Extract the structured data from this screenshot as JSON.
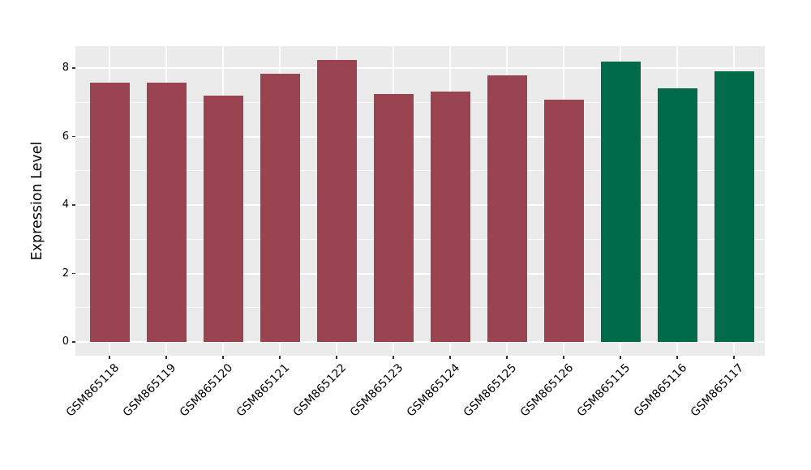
{
  "chart_data": {
    "type": "bar",
    "title": "",
    "xlabel": "",
    "ylabel": "Expression Level",
    "categories": [
      "GSM865118",
      "GSM865119",
      "GSM865120",
      "GSM865121",
      "GSM865122",
      "GSM865123",
      "GSM865124",
      "GSM865125",
      "GSM865126",
      "GSM865115",
      "GSM865116",
      "GSM865117"
    ],
    "values": [
      7.57,
      7.57,
      7.2,
      7.84,
      8.24,
      7.24,
      7.31,
      7.79,
      7.08,
      8.19,
      7.41,
      7.91
    ],
    "bar_colors": [
      "#9B4451",
      "#9B4451",
      "#9B4451",
      "#9B4451",
      "#9B4451",
      "#9B4451",
      "#9B4451",
      "#9B4451",
      "#9B4451",
      "#006B48",
      "#006B48",
      "#006B48"
    ],
    "yticks": [
      0,
      2,
      4,
      6,
      8
    ],
    "yticks_minor": [
      1,
      3,
      5,
      7
    ],
    "ylim": [
      -0.43,
      8.64
    ],
    "x_tick_rotation": 45,
    "legend": "none",
    "grid": "on",
    "colors": {
      "panel_background": "#EBEBEB",
      "grid": "#FFFFFF",
      "tick": "#333333",
      "text": "#000000",
      "group_red": "#9B4451",
      "group_green": "#006B48"
    }
  }
}
